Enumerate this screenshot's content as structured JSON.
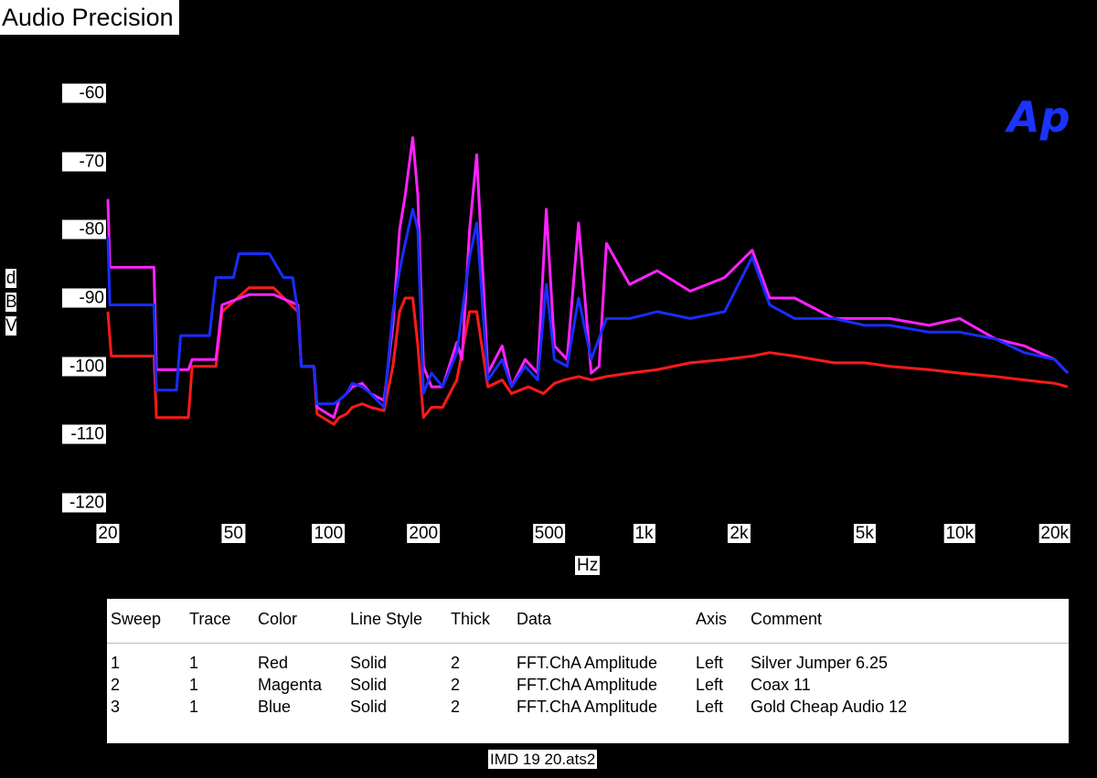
{
  "window_title": "Audio Precision",
  "logo_text": "Ap",
  "file_name": "IMD 19 20.ats2",
  "legend": {
    "headers": [
      "Sweep",
      "Trace",
      "Color",
      "Line Style",
      "Thick",
      "Data",
      "Axis",
      "Comment"
    ],
    "rows": [
      [
        "1",
        "1",
        "Red",
        "Solid",
        "2",
        "FFT.ChA Amplitude",
        "Left",
        "Silver Jumper 6.25"
      ],
      [
        "2",
        "1",
        "Magenta",
        "Solid",
        "2",
        "FFT.ChA Amplitude",
        "Left",
        "Coax 11"
      ],
      [
        "3",
        "1",
        "Blue",
        "Solid",
        "2",
        "FFT.ChA Amplitude",
        "Left",
        "Gold Cheap Audio 12"
      ]
    ]
  },
  "chart_data": {
    "type": "line",
    "x_scale": "log",
    "xlabel": "Hz",
    "ylabel": "dBV",
    "xlim": [
      20,
      22000
    ],
    "ylim": [
      -120,
      -60
    ],
    "x_ticks": [
      20,
      50,
      100,
      200,
      500,
      1000,
      2000,
      5000,
      10000,
      20000
    ],
    "x_tick_labels": [
      "20",
      "50",
      "100",
      "200",
      "500",
      "1k",
      "2k",
      "5k",
      "10k",
      "20k"
    ],
    "y_ticks": [
      -60,
      -70,
      -80,
      -90,
      -100,
      -110,
      -120
    ],
    "y_tick_labels": [
      "-60",
      "-70",
      "-80",
      "-90",
      "-100",
      "-110",
      "-120"
    ],
    "background": "#000000",
    "colors": {
      "Red": "#ff1a1a",
      "Magenta": "#ff22ff",
      "Blue": "#1a2dff"
    },
    "series": [
      {
        "color_name": "Red",
        "x": [
          20,
          20.5,
          28,
          28.5,
          36,
          37,
          44,
          46,
          56,
          67,
          80,
          82,
          90,
          92,
          104,
          108,
          114,
          119,
          128,
          136,
          150,
          160,
          168,
          175,
          185,
          192,
          200,
          212,
          230,
          255,
          280,
          295,
          320,
          355,
          380,
          430,
          480,
          520,
          560,
          620,
          680,
          760,
          900,
          1100,
          1400,
          1800,
          2200,
          2500,
          3000,
          4000,
          5000,
          6000,
          8000,
          10000,
          13000,
          16000,
          20000,
          22000
        ],
        "y": [
          -92,
          -98.5,
          -98.5,
          -107.5,
          -107.5,
          -100,
          -100,
          -92,
          -88.5,
          -88.5,
          -92,
          -100,
          -100,
          -107,
          -108.5,
          -107.5,
          -107,
          -106,
          -105.5,
          -106,
          -106.5,
          -100,
          -92,
          -90,
          -90,
          -97,
          -107.5,
          -106,
          -106,
          -102,
          -92,
          -92,
          -103,
          -102,
          -104,
          -103,
          -104,
          -102.5,
          -102,
          -101.5,
          -102,
          -101.5,
          -101,
          -100.5,
          -99.5,
          -99,
          -98.5,
          -98,
          -98.5,
          -99.5,
          -99.5,
          -100,
          -100.5,
          -101,
          -101.5,
          -102,
          -102.5,
          -103
        ]
      },
      {
        "color_name": "Magenta",
        "x": [
          20,
          20.3,
          20.6,
          28,
          28.5,
          36,
          37,
          44,
          46,
          56,
          67,
          80,
          82,
          90,
          92,
          104,
          108,
          114,
          119,
          128,
          136,
          150,
          160,
          168,
          175,
          185,
          192,
          200,
          212,
          230,
          255,
          265,
          280,
          295,
          320,
          355,
          380,
          420,
          460,
          490,
          520,
          570,
          620,
          680,
          720,
          760,
          900,
          1100,
          1400,
          1800,
          2200,
          2500,
          3000,
          4000,
          5000,
          6000,
          8000,
          10000,
          13000,
          16000,
          20000,
          22000
        ],
        "y": [
          -75.5,
          -85.5,
          -85.5,
          -85.5,
          -100.5,
          -100.5,
          -99,
          -99,
          -91,
          -89.5,
          -89.5,
          -91,
          -100,
          -100,
          -106,
          -107.5,
          -105,
          -104,
          -103,
          -102.5,
          -104,
          -105,
          -94,
          -80,
          -75,
          -66.5,
          -75,
          -100,
          -103,
          -103,
          -96.5,
          -99,
          -80,
          -69,
          -101,
          -97,
          -103,
          -99,
          -101,
          -77,
          -97,
          -99,
          -79,
          -101,
          -100,
          -82,
          -88,
          -86,
          -89,
          -87,
          -83,
          -90,
          -90,
          -93,
          -93,
          -93,
          -94,
          -93,
          -96,
          -97,
          -99,
          -101
        ]
      },
      {
        "color_name": "Blue",
        "x": [
          20,
          20.3,
          20.6,
          28,
          28.5,
          33,
          34,
          42,
          44,
          50,
          52,
          65,
          72,
          77,
          80,
          82,
          90,
          92,
          104,
          108,
          114,
          119,
          128,
          136,
          150,
          160,
          168,
          175,
          185,
          192,
          200,
          212,
          230,
          255,
          280,
          295,
          320,
          355,
          380,
          420,
          460,
          490,
          520,
          570,
          620,
          680,
          760,
          900,
          1100,
          1400,
          1800,
          2200,
          2500,
          3000,
          4000,
          5000,
          6000,
          8000,
          10000,
          13000,
          16000,
          20000,
          22000
        ],
        "y": [
          -81,
          -91,
          -91,
          -91,
          -103.5,
          -103.5,
          -95.5,
          -95.5,
          -87,
          -87,
          -83.5,
          -83.5,
          -87,
          -87,
          -92,
          -100,
          -100,
          -105.5,
          -105.5,
          -105,
          -104,
          -102.5,
          -103,
          -104,
          -106,
          -92,
          -86,
          -82,
          -77,
          -80,
          -104,
          -101,
          -103,
          -98,
          -84,
          -79,
          -102,
          -99,
          -103,
          -100,
          -102,
          -88,
          -99,
          -100,
          -90,
          -99,
          -93,
          -93,
          -92,
          -93,
          -92,
          -84,
          -91,
          -93,
          -93,
          -94,
          -94,
          -95,
          -95,
          -96,
          -98,
          -99,
          -101
        ]
      }
    ]
  }
}
